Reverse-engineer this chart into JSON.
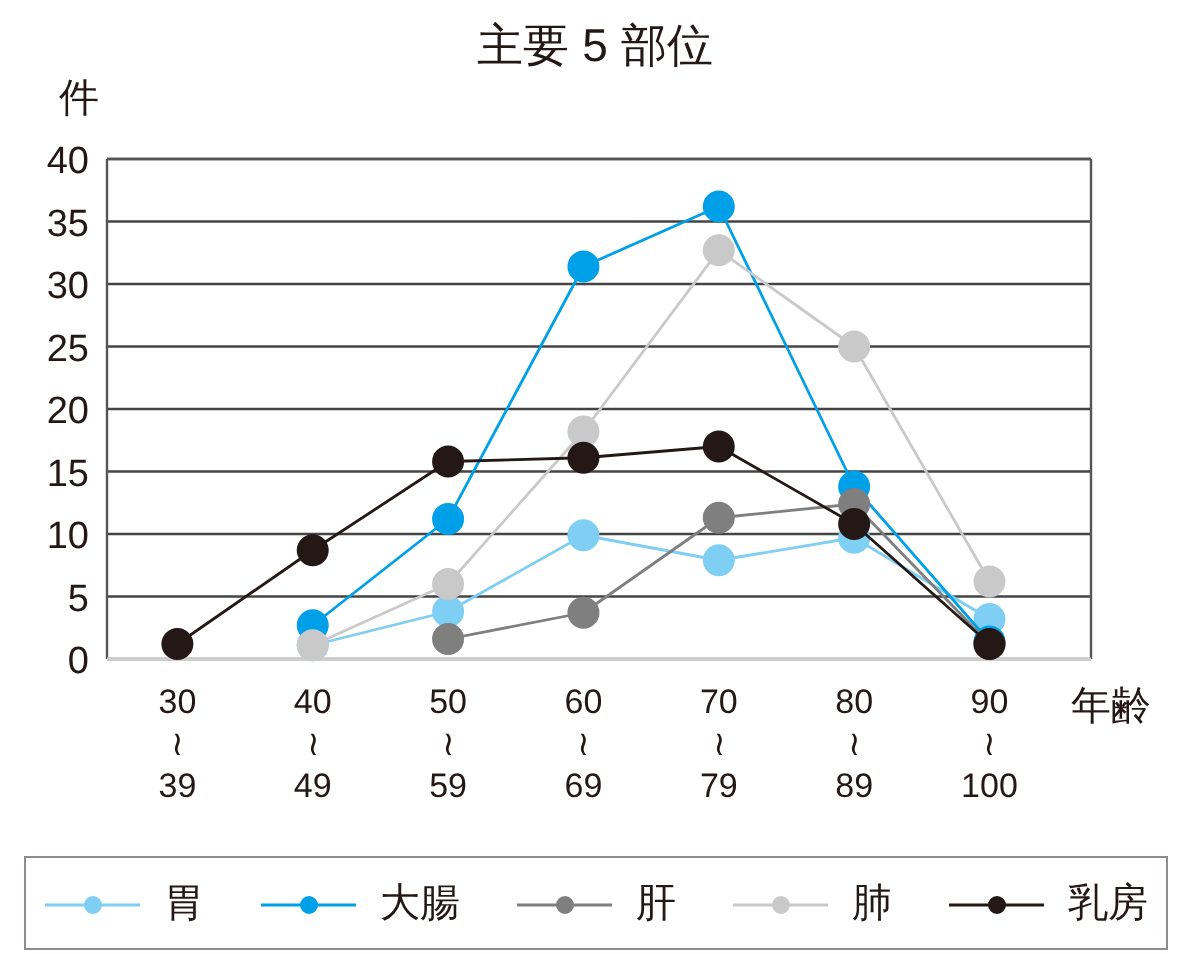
{
  "chart_data": {
    "type": "line",
    "title": "主要 5 部位",
    "xlabel": "年齢",
    "ylabel": "件",
    "categories": [
      "30\n≀\n39",
      "40\n≀\n49",
      "50\n≀\n59",
      "60\n≀\n69",
      "70\n≀\n79",
      "80\n≀\n89",
      "90\n≀\n100"
    ],
    "ylim": [
      0,
      40
    ],
    "yticks": [
      0,
      5,
      10,
      15,
      20,
      25,
      30,
      35,
      40
    ],
    "grid": "y",
    "legend": "bottom",
    "marker": "circle",
    "line_style": "solid",
    "series": [
      {
        "name": "胃",
        "color": "#7fcef4",
        "values": [
          null,
          1.1,
          3.8,
          9.9,
          7.9,
          9.7,
          3.2
        ]
      },
      {
        "name": "大腸",
        "color": "#00a0e9",
        "values": [
          null,
          2.7,
          11.2,
          31.4,
          36.2,
          13.8,
          1.4
        ]
      },
      {
        "name": "肝",
        "color": "#7f7f7f",
        "values": [
          null,
          null,
          1.6,
          3.7,
          11.3,
          12.4,
          1.2
        ]
      },
      {
        "name": "肺",
        "color": "#c9c9c9",
        "values": [
          null,
          1.1,
          6.0,
          18.2,
          32.7,
          25.0,
          6.2
        ]
      },
      {
        "name": "乳房",
        "color": "#231815",
        "values": [
          1.2,
          8.7,
          15.8,
          16.1,
          17.0,
          10.8,
          1.2
        ]
      }
    ]
  }
}
